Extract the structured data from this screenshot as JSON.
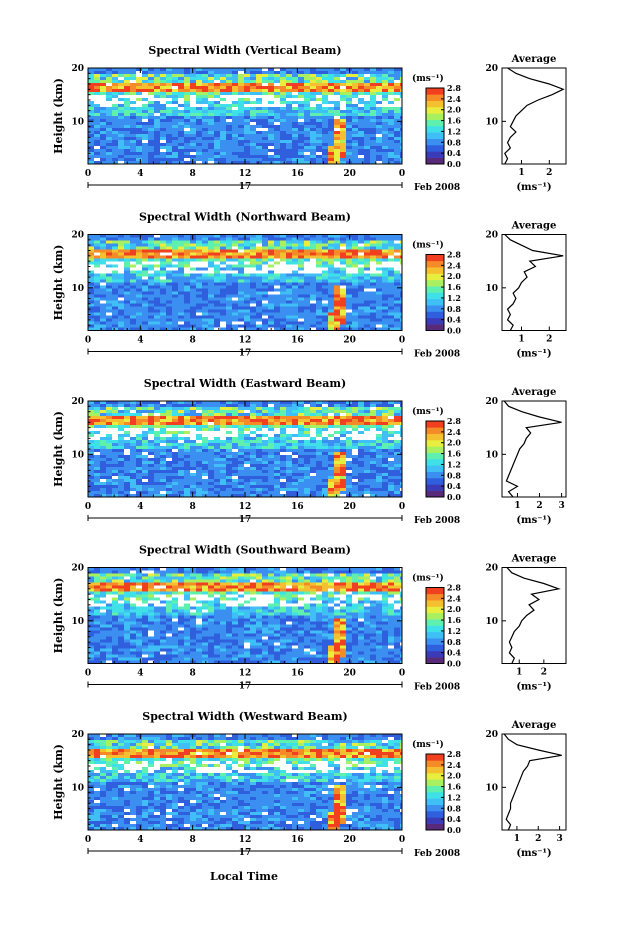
{
  "figure": {
    "xlabel": "Local Time",
    "date_label": "Feb 2008",
    "day_label": "17",
    "colorbar_unit": "(ms⁻¹)",
    "avg_title": "Average",
    "avg_xlabel": "(ms⁻¹)"
  },
  "colorbar_colors": [
    "#5a2a7a",
    "#3b3bb8",
    "#2f5fdc",
    "#3a8ff0",
    "#3fbff5",
    "#3fe0e8",
    "#5ff0b0",
    "#a8f060",
    "#e8ee40",
    "#f5c030",
    "#f58a28",
    "#f04020"
  ],
  "chart_data": [
    {
      "type": "heatmap",
      "title": "Spectral Width (Vertical Beam)",
      "ylabel": "Height (km)",
      "x_ticks": [
        "0",
        "4",
        "8",
        "12",
        "16",
        "20",
        "0"
      ],
      "y_ticks": [
        "10",
        "20"
      ],
      "xlim": [
        0,
        24
      ],
      "ylim": [
        2,
        20
      ],
      "colorbar_ticks": [
        "0.0",
        "0.4",
        "0.8",
        "1.2",
        "1.6",
        "2.0",
        "2.4",
        "2.8"
      ],
      "colorbar_range": [
        0,
        2.8
      ],
      "average": {
        "x_ticks": [
          "1",
          "2"
        ],
        "y_ticks": [
          "10",
          "20"
        ],
        "xlim": [
          0.3,
          2.6
        ],
        "profile": [
          [
            0.4,
            2
          ],
          [
            0.5,
            3
          ],
          [
            0.4,
            4
          ],
          [
            0.6,
            5
          ],
          [
            0.5,
            6
          ],
          [
            0.6,
            7
          ],
          [
            0.8,
            8
          ],
          [
            0.6,
            9
          ],
          [
            0.7,
            10
          ],
          [
            0.8,
            11
          ],
          [
            1.0,
            12
          ],
          [
            1.2,
            13
          ],
          [
            1.6,
            14
          ],
          [
            2.1,
            15
          ],
          [
            2.5,
            16
          ],
          [
            2.0,
            17
          ],
          [
            1.3,
            18
          ],
          [
            0.8,
            19
          ],
          [
            0.5,
            20
          ]
        ]
      }
    },
    {
      "type": "heatmap",
      "title": "Spectral Width (Northward Beam)",
      "ylabel": "Height (km)",
      "x_ticks": [
        "0",
        "4",
        "8",
        "12",
        "16",
        "20",
        "0"
      ],
      "y_ticks": [
        "10",
        "20"
      ],
      "xlim": [
        0,
        24
      ],
      "ylim": [
        2,
        20
      ],
      "colorbar_ticks": [
        "0.0",
        "0.4",
        "0.8",
        "1.2",
        "1.6",
        "2.0",
        "2.4",
        "2.8"
      ],
      "colorbar_range": [
        0,
        2.8
      ],
      "average": {
        "x_ticks": [
          "1",
          "2"
        ],
        "y_ticks": [
          "10",
          "20"
        ],
        "xlim": [
          0.3,
          2.6
        ],
        "profile": [
          [
            0.6,
            2
          ],
          [
            0.7,
            3
          ],
          [
            0.5,
            4
          ],
          [
            0.6,
            5
          ],
          [
            0.5,
            6
          ],
          [
            0.7,
            7
          ],
          [
            0.8,
            8
          ],
          [
            0.7,
            9
          ],
          [
            0.9,
            10
          ],
          [
            1.0,
            11
          ],
          [
            1.2,
            12
          ],
          [
            1.1,
            13
          ],
          [
            1.5,
            14
          ],
          [
            1.3,
            15
          ],
          [
            2.5,
            16
          ],
          [
            1.4,
            17
          ],
          [
            1.0,
            18
          ],
          [
            0.6,
            19
          ],
          [
            0.4,
            20
          ]
        ]
      }
    },
    {
      "type": "heatmap",
      "title": "Spectral Width (Eastward Beam)",
      "ylabel": "Height (km)",
      "x_ticks": [
        "0",
        "4",
        "8",
        "12",
        "16",
        "20",
        "0"
      ],
      "y_ticks": [
        "10",
        "20"
      ],
      "xlim": [
        0,
        24
      ],
      "ylim": [
        2,
        20
      ],
      "colorbar_ticks": [
        "0.0",
        "0.4",
        "0.8",
        "1.2",
        "1.6",
        "2.0",
        "2.4",
        "2.8"
      ],
      "colorbar_range": [
        0,
        2.8
      ],
      "average": {
        "x_ticks": [
          "1",
          "2",
          "3"
        ],
        "y_ticks": [
          "10",
          "20"
        ],
        "xlim": [
          0.3,
          3.2
        ],
        "profile": [
          [
            0.8,
            2
          ],
          [
            0.6,
            3
          ],
          [
            1.0,
            4
          ],
          [
            0.5,
            5
          ],
          [
            0.6,
            6
          ],
          [
            0.7,
            7
          ],
          [
            0.8,
            8
          ],
          [
            0.9,
            9
          ],
          [
            1.0,
            10
          ],
          [
            1.1,
            11
          ],
          [
            1.3,
            12
          ],
          [
            1.4,
            13
          ],
          [
            1.6,
            14
          ],
          [
            1.4,
            15
          ],
          [
            3.0,
            16
          ],
          [
            2.0,
            17
          ],
          [
            1.2,
            18
          ],
          [
            0.6,
            19
          ],
          [
            0.4,
            20
          ]
        ]
      }
    },
    {
      "type": "heatmap",
      "title": "Spectral Width (Southward Beam)",
      "ylabel": "Height (km)",
      "x_ticks": [
        "0",
        "4",
        "8",
        "12",
        "16",
        "20",
        "0"
      ],
      "y_ticks": [
        "10",
        "20"
      ],
      "xlim": [
        0,
        24
      ],
      "ylim": [
        2,
        20
      ],
      "colorbar_ticks": [
        "0.0",
        "0.4",
        "0.8",
        "1.2",
        "1.6",
        "2.0",
        "2.4",
        "2.8"
      ],
      "colorbar_range": [
        0,
        2.8
      ],
      "average": {
        "x_ticks": [
          "1",
          "2"
        ],
        "y_ticks": [
          "10",
          "20"
        ],
        "xlim": [
          0.3,
          2.9
        ],
        "profile": [
          [
            0.7,
            2
          ],
          [
            0.8,
            3
          ],
          [
            0.6,
            4
          ],
          [
            0.7,
            5
          ],
          [
            0.6,
            6
          ],
          [
            0.7,
            7
          ],
          [
            0.8,
            8
          ],
          [
            1.0,
            9
          ],
          [
            1.1,
            10
          ],
          [
            1.3,
            11
          ],
          [
            1.6,
            12
          ],
          [
            1.4,
            13
          ],
          [
            1.8,
            14
          ],
          [
            1.5,
            15
          ],
          [
            2.6,
            16
          ],
          [
            2.0,
            17
          ],
          [
            1.2,
            18
          ],
          [
            0.7,
            19
          ],
          [
            0.5,
            20
          ]
        ]
      }
    },
    {
      "type": "heatmap",
      "title": "Spectral Width (Westward Beam)",
      "ylabel": "Height (km)",
      "x_ticks": [
        "0",
        "4",
        "8",
        "12",
        "16",
        "20",
        "0"
      ],
      "y_ticks": [
        "10",
        "20"
      ],
      "xlim": [
        0,
        24
      ],
      "ylim": [
        2,
        20
      ],
      "colorbar_ticks": [
        "0.0",
        "0.4",
        "0.8",
        "1.2",
        "1.6",
        "2.0",
        "2.4",
        "2.8"
      ],
      "colorbar_range": [
        0,
        2.8
      ],
      "average": {
        "x_ticks": [
          "1",
          "2",
          "3"
        ],
        "y_ticks": [
          "10",
          "20"
        ],
        "xlim": [
          0.3,
          3.3
        ],
        "profile": [
          [
            0.6,
            2
          ],
          [
            0.7,
            3
          ],
          [
            0.5,
            4
          ],
          [
            0.6,
            5
          ],
          [
            0.7,
            6
          ],
          [
            0.7,
            7
          ],
          [
            0.8,
            8
          ],
          [
            0.9,
            9
          ],
          [
            1.0,
            10
          ],
          [
            1.1,
            11
          ],
          [
            1.2,
            12
          ],
          [
            1.3,
            13
          ],
          [
            1.5,
            14
          ],
          [
            1.6,
            15
          ],
          [
            3.1,
            16
          ],
          [
            2.0,
            17
          ],
          [
            1.0,
            18
          ],
          [
            0.6,
            19
          ],
          [
            0.4,
            20
          ]
        ]
      }
    }
  ]
}
